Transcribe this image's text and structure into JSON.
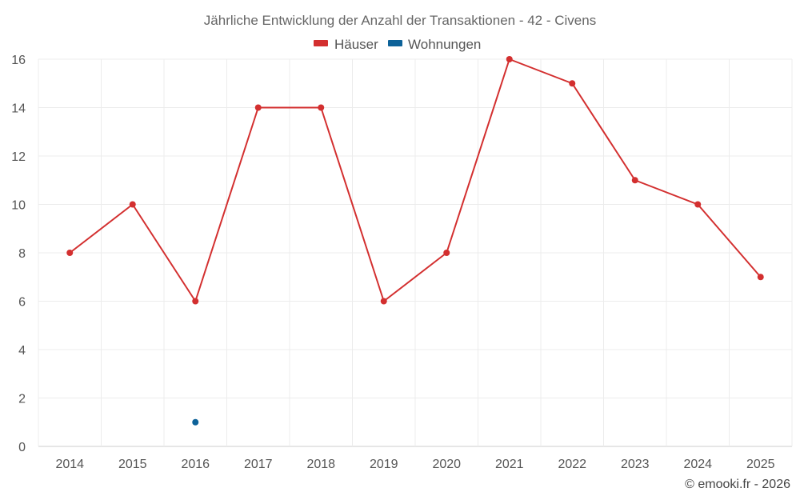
{
  "chart_data": {
    "type": "line",
    "title": "Jährliche Entwicklung der Anzahl der Transaktionen - 42 - Civens",
    "categories": [
      "2014",
      "2015",
      "2016",
      "2017",
      "2018",
      "2019",
      "2020",
      "2021",
      "2022",
      "2023",
      "2024",
      "2025"
    ],
    "series": [
      {
        "name": "Häuser",
        "color": "#d32f2f",
        "values": [
          8,
          10,
          6,
          14,
          14,
          6,
          8,
          16,
          15,
          11,
          10,
          7
        ]
      },
      {
        "name": "Wohnungen",
        "color": "#0d6299",
        "values": [
          null,
          null,
          1,
          null,
          null,
          null,
          null,
          null,
          null,
          null,
          null,
          null
        ]
      }
    ],
    "ylim": [
      0,
      16
    ],
    "yticks": [
      0,
      2,
      4,
      6,
      8,
      10,
      12,
      14,
      16
    ],
    "grid": true,
    "legend": "top-center"
  },
  "credit": "© emooki.fr - 2026"
}
